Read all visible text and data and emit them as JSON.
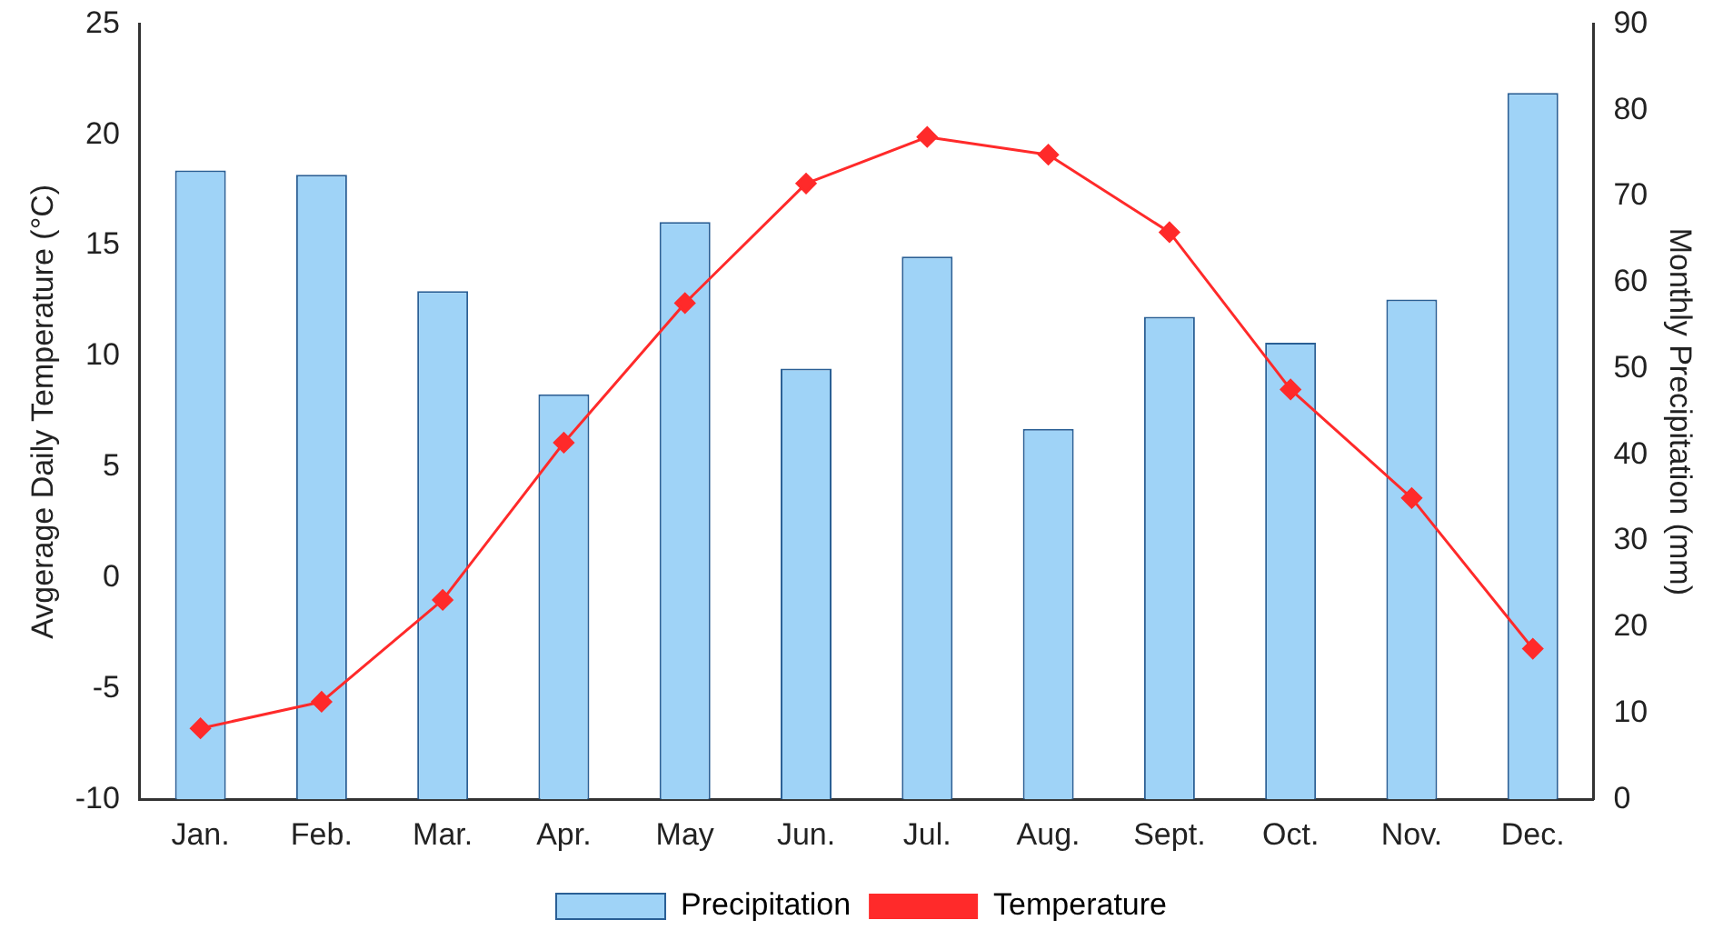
{
  "chart_data": {
    "type": "bar",
    "categories": [
      "Jan.",
      "Feb.",
      "Mar.",
      "Apr.",
      "May",
      "Jun.",
      "Jul.",
      "Aug.",
      "Sept.",
      "Oct.",
      "Nov.",
      "Dec."
    ],
    "ylabel": "Avgerage Daily Temperature (°C)",
    "y2label": "Monthly Precipitation (mm)",
    "ylim": [
      -10,
      25
    ],
    "yticks": [
      -10,
      -5,
      0,
      5,
      10,
      15,
      20,
      25
    ],
    "y2lim": [
      0,
      90
    ],
    "y2ticks": [
      0,
      10,
      20,
      30,
      40,
      50,
      60,
      70,
      80,
      90
    ],
    "series": [
      {
        "name": "Precipitation",
        "axis": "y2",
        "color": "#9fd3f7",
        "values": [
          73,
          72.5,
          59,
          47,
          67,
          50,
          63,
          43,
          56,
          53,
          58,
          82
        ]
      },
      {
        "name": "Temperature",
        "type": "line",
        "axis": "y",
        "color": "#ff2a2a",
        "marker": "diamond",
        "values": [
          -6.8,
          -5.6,
          -1,
          6.1,
          12.4,
          17.8,
          19.9,
          19.1,
          15.6,
          8.5,
          3.6,
          -3.2
        ]
      }
    ],
    "legend": "bottom",
    "grid": false
  }
}
